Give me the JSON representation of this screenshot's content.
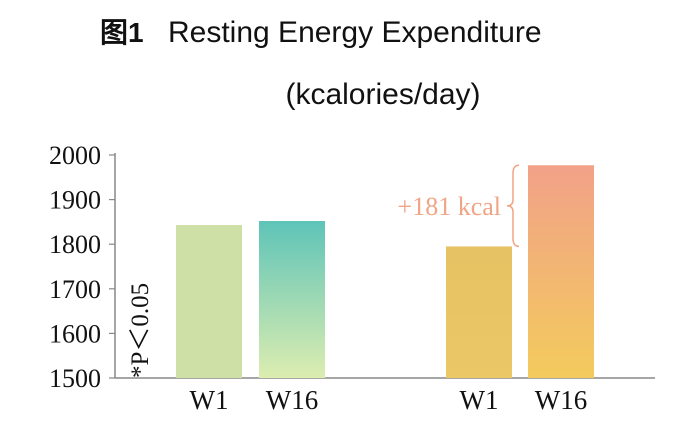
{
  "chart_data": {
    "type": "bar",
    "title_prefix": "图1",
    "title": "Resting Energy Expenditure",
    "subtitle": "(kcalories/day)",
    "ylim": [
      1500,
      2000
    ],
    "yticks": [
      1500,
      1600,
      1700,
      1800,
      1900,
      2000
    ],
    "side_note": "*P＜0.05",
    "groups": [
      {
        "bars": [
          {
            "label": "W1",
            "value": 1843,
            "color_top": "#cfe0a6",
            "color_bottom": "#cfe0a6"
          },
          {
            "label": "W16",
            "value": 1852,
            "color_top": "#5ec4b8",
            "color_bottom": "#dcedb0"
          }
        ]
      },
      {
        "bars": [
          {
            "label": "W1",
            "value": 1795,
            "color_top": "#e6c264",
            "color_bottom": "#ecc766"
          },
          {
            "label": "W16",
            "value": 1977,
            "color_top": "#f2a188",
            "color_bottom": "#f3cb5d"
          }
        ]
      }
    ],
    "annotation": {
      "text": "+181 kcal",
      "color": "#f0a585"
    },
    "colors": {
      "axis": "#888888",
      "text": "#111111"
    }
  }
}
